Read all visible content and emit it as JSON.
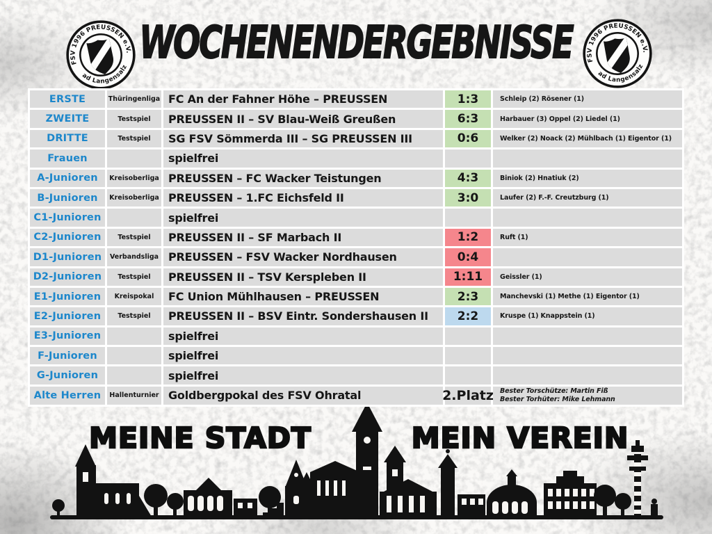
{
  "header": {
    "title": "WOCHENENDERGEBNISSE"
  },
  "logo": {
    "top_text": "FSV 1996 PREUSSEN e.V.",
    "bottom_text": "• Bad Langensalza •"
  },
  "footer": {
    "left": "MEINE STADT",
    "right": "MEIN VEREIN"
  },
  "legend_colors": {
    "win": "#c5e0b3",
    "loss": "#f5868c",
    "draw": "#bdd9ee",
    "team_name": "#1d87cb",
    "cell": "#dcdcdc"
  },
  "results": {
    "rows": [
      {
        "team": "ERSTE",
        "league": "Thüringenliga",
        "match": "FC An der Fahner Höhe – PREUSSEN",
        "score": "1:3",
        "result": "win",
        "scorers": "Schleip (2) Rösener (1)"
      },
      {
        "team": "ZWEITE",
        "league": "Testspiel",
        "match": "PREUSSEN II – SV Blau-Weiß Greußen",
        "score": "6:3",
        "result": "win",
        "scorers": "Harbauer (3) Oppel (2) Liedel (1)"
      },
      {
        "team": "DRITTE",
        "league": "Testspiel",
        "match": "SG FSV Sömmerda III – SG PREUSSEN III",
        "score": "0:6",
        "result": "win",
        "scorers": "Welker (2) Noack (2) Mühlbach (1) Eigentor (1)"
      },
      {
        "team": "Frauen",
        "league": "",
        "match": "spielfrei",
        "score": "",
        "result": "none",
        "scorers": ""
      },
      {
        "team": "A-Junioren",
        "league": "Kreisoberliga",
        "match": "PREUSSEN – FC Wacker Teistungen",
        "score": "4:3",
        "result": "win",
        "scorers": "Biniok (2) Hnatiuk (2)"
      },
      {
        "team": "B-Junioren",
        "league": "Kreisoberliga",
        "match": "PREUSSEN – 1.FC Eichsfeld II",
        "score": "3:0",
        "result": "win",
        "scorers": "Laufer (2) F.-F. Creutzburg (1)"
      },
      {
        "team": "C1-Junioren",
        "league": "",
        "match": "spielfrei",
        "score": "",
        "result": "none",
        "scorers": ""
      },
      {
        "team": "C2-Junioren",
        "league": "Testspiel",
        "match": "PREUSSEN II – SF Marbach II",
        "score": "1:2",
        "result": "loss",
        "scorers": "Ruft (1)"
      },
      {
        "team": "D1-Junioren",
        "league": "Verbandsliga",
        "match": "PREUSSEN – FSV Wacker Nordhausen",
        "score": "0:4",
        "result": "loss",
        "scorers": ""
      },
      {
        "team": "D2-Junioren",
        "league": "Testspiel",
        "match": "PREUSSEN II – TSV Kerspleben II",
        "score": "1:11",
        "result": "loss",
        "scorers": "Geissler (1)"
      },
      {
        "team": "E1-Junioren",
        "league": "Kreispokal",
        "match": "FC Union Mühlhausen – PREUSSEN",
        "score": "2:3",
        "result": "win",
        "scorers": "Manchevski (1) Methe (1) Eigentor (1)"
      },
      {
        "team": "E2-Junioren",
        "league": "Testspiel",
        "match": "PREUSSEN II – BSV Eintr. Sondershausen II",
        "score": "2:2",
        "result": "draw",
        "scorers": "Kruspe (1) Knappstein (1)"
      },
      {
        "team": "E3-Junioren",
        "league": "",
        "match": "spielfrei",
        "score": "",
        "result": "none",
        "scorers": ""
      },
      {
        "team": "F-Junioren",
        "league": "",
        "match": "spielfrei",
        "score": "",
        "result": "none",
        "scorers": ""
      },
      {
        "team": "G-Junioren",
        "league": "",
        "match": "spielfrei",
        "score": "",
        "result": "none",
        "scorers": ""
      },
      {
        "team": "Alte Herren",
        "league": "Hallenturnier",
        "match": "Goldbergpokal des FSV Ohratal",
        "score": "2.Platz",
        "result": "placement",
        "scorers_lines": [
          "Bester Torschütze: Martin Fiß",
          "Bester Torhüter: Mike Lehmann"
        ]
      }
    ]
  }
}
